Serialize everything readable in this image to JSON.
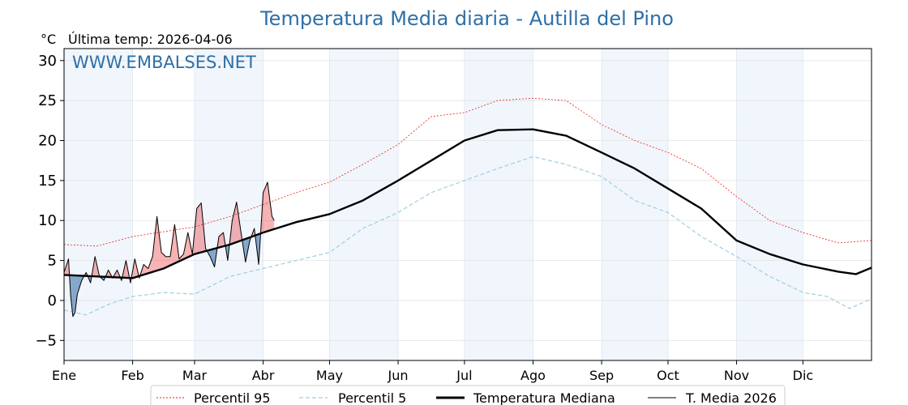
{
  "chart_data": {
    "type": "line",
    "title": "Temperatura Media diaria - Autilla del Pino",
    "unit_label": "°C",
    "subtitle": "Última temp: 2026-04-06",
    "watermark": "WWW.EMBALSES.NET",
    "ylim": [
      -7.5,
      31.5
    ],
    "yticks": [
      -5,
      0,
      5,
      10,
      15,
      20,
      25,
      30
    ],
    "xlim_days": [
      0,
      365
    ],
    "months": [
      {
        "label": "Ene",
        "day": 0
      },
      {
        "label": "Feb",
        "day": 31
      },
      {
        "label": "Mar",
        "day": 59
      },
      {
        "label": "Abr",
        "day": 90
      },
      {
        "label": "May",
        "day": 120
      },
      {
        "label": "Jun",
        "day": 151
      },
      {
        "label": "Jul",
        "day": 181
      },
      {
        "label": "Ago",
        "day": 212
      },
      {
        "label": "Sep",
        "day": 243
      },
      {
        "label": "Oct",
        "day": 273
      },
      {
        "label": "Nov",
        "day": 304
      },
      {
        "label": "Dic",
        "day": 334
      }
    ],
    "shaded_month_indices": [
      0,
      2,
      4,
      6,
      8,
      10
    ],
    "grid": true,
    "series": [
      {
        "name": "Percentil 95",
        "color": "#e8221a",
        "style": "dotted",
        "x": [
          0,
          15,
          31,
          45,
          59,
          75,
          90,
          105,
          120,
          135,
          151,
          166,
          181,
          196,
          212,
          227,
          243,
          258,
          273,
          288,
          304,
          319,
          334,
          350,
          365
        ],
        "y": [
          7.0,
          6.8,
          8.0,
          8.6,
          9.2,
          10.5,
          12.0,
          13.5,
          14.8,
          17.0,
          19.5,
          23.0,
          23.5,
          25.0,
          25.3,
          25.0,
          22.0,
          20.0,
          18.5,
          16.5,
          13.0,
          10.0,
          8.5,
          7.2,
          7.5
        ]
      },
      {
        "name": "Percentil 5",
        "color": "#9ecfe0",
        "style": "dashed",
        "x": [
          0,
          10,
          20,
          31,
          45,
          59,
          75,
          90,
          105,
          120,
          135,
          151,
          166,
          181,
          196,
          212,
          227,
          243,
          258,
          273,
          288,
          304,
          319,
          334,
          345,
          355,
          365
        ],
        "y": [
          -1.2,
          -1.8,
          -0.5,
          0.5,
          1.0,
          0.8,
          3.0,
          4.0,
          5.0,
          6.0,
          9.0,
          11.0,
          13.5,
          15.0,
          16.5,
          18.0,
          17.0,
          15.5,
          12.5,
          11.0,
          8.0,
          5.5,
          3.0,
          1.0,
          0.5,
          -1.0,
          0.2
        ]
      },
      {
        "name": "Temperatura Mediana",
        "color": "#000000",
        "style": "solid-thick",
        "x": [
          0,
          15,
          31,
          45,
          59,
          75,
          90,
          105,
          120,
          135,
          151,
          166,
          181,
          196,
          212,
          227,
          243,
          258,
          273,
          288,
          304,
          319,
          334,
          350,
          358,
          365
        ],
        "y": [
          3.2,
          3.0,
          2.8,
          4.0,
          5.8,
          7.0,
          8.5,
          9.8,
          10.8,
          12.5,
          15.0,
          17.5,
          20.0,
          21.3,
          21.4,
          20.6,
          18.5,
          16.5,
          14.0,
          11.5,
          7.5,
          5.8,
          4.5,
          3.6,
          3.3,
          4.1
        ]
      },
      {
        "name": "T. Media 2026",
        "color": "#000000",
        "style": "solid-thin",
        "x": [
          0,
          2,
          3,
          4,
          5,
          6,
          8,
          10,
          12,
          14,
          16,
          18,
          20,
          22,
          24,
          26,
          28,
          30,
          32,
          34,
          36,
          38,
          40,
          42,
          44,
          46,
          48,
          50,
          52,
          54,
          56,
          58,
          60,
          62,
          64,
          66,
          68,
          70,
          72,
          74,
          76,
          78,
          80,
          82,
          84,
          86,
          88,
          90,
          92,
          94,
          95
        ],
        "y": [
          3.5,
          5.2,
          0.5,
          -2.0,
          -1.5,
          0.8,
          2.5,
          3.5,
          2.2,
          5.5,
          3.0,
          2.5,
          3.8,
          2.8,
          3.8,
          2.5,
          5.0,
          2.2,
          5.2,
          2.8,
          4.5,
          4.0,
          5.5,
          10.5,
          6.0,
          5.5,
          5.5,
          9.5,
          5.2,
          5.8,
          8.5,
          5.8,
          11.5,
          12.2,
          6.5,
          5.5,
          4.2,
          8.0,
          8.5,
          5.0,
          10.0,
          12.3,
          8.5,
          4.8,
          7.5,
          9.0,
          4.5,
          13.5,
          14.8,
          10.5,
          10.0
        ]
      }
    ]
  },
  "legend": {
    "items": [
      {
        "label": "Percentil 95"
      },
      {
        "label": "Percentil 5"
      },
      {
        "label": "Temperatura Mediana"
      },
      {
        "label": "T. Media 2026"
      }
    ]
  }
}
